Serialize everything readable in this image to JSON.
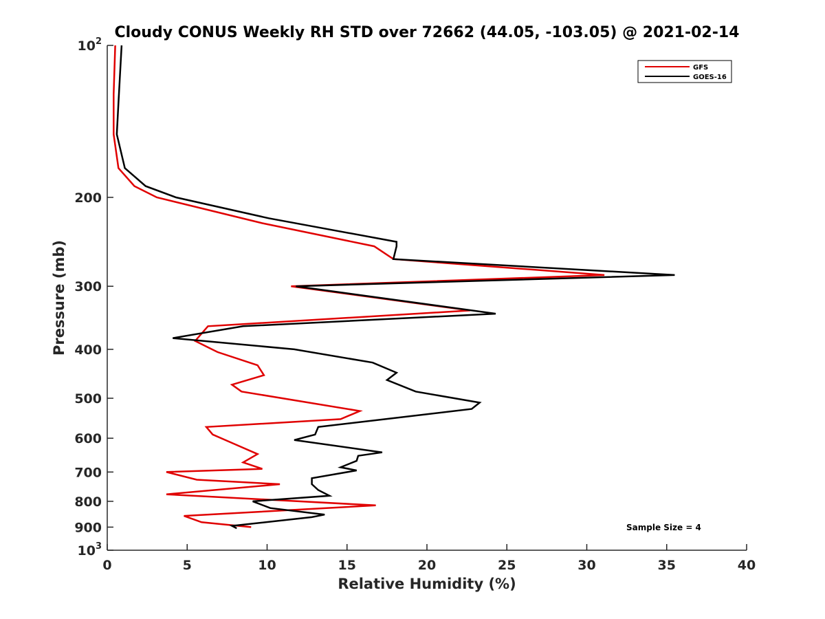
{
  "chart_data": {
    "type": "line",
    "title": "Cloudy CONUS Weekly RH STD over 72662 (44.05, -103.05) @ 2021-02-14",
    "xlabel": "Relative Humidity (%)",
    "ylabel": "Pressure (mb)",
    "xlim": [
      0,
      40
    ],
    "ylim": [
      100,
      1000
    ],
    "y_scale": "log",
    "y_reversed": true,
    "grid": false,
    "legend_position": "top-right",
    "x_ticks": [
      {
        "value": 0,
        "label": "0"
      },
      {
        "value": 5,
        "label": "5"
      },
      {
        "value": 10,
        "label": "10"
      },
      {
        "value": 15,
        "label": "15"
      },
      {
        "value": 20,
        "label": "20"
      },
      {
        "value": 25,
        "label": "25"
      },
      {
        "value": 30,
        "label": "30"
      },
      {
        "value": 35,
        "label": "35"
      },
      {
        "value": 40,
        "label": "40"
      }
    ],
    "y_ticks": [
      {
        "value": 100,
        "base": "10",
        "exp": "2"
      },
      {
        "value": 200,
        "base": "200",
        "exp": ""
      },
      {
        "value": 300,
        "base": "300",
        "exp": ""
      },
      {
        "value": 400,
        "base": "400",
        "exp": ""
      },
      {
        "value": 500,
        "base": "500",
        "exp": ""
      },
      {
        "value": 600,
        "base": "600",
        "exp": ""
      },
      {
        "value": 700,
        "base": "700",
        "exp": ""
      },
      {
        "value": 800,
        "base": "800",
        "exp": ""
      },
      {
        "value": 900,
        "base": "900",
        "exp": ""
      },
      {
        "value": 1000,
        "base": "10",
        "exp": "3"
      }
    ],
    "annotation": "Sample Size = 4",
    "series": [
      {
        "name": "GFS",
        "color": "#e00000",
        "points": [
          [
            0.5,
            100
          ],
          [
            0.4,
            125
          ],
          [
            0.4,
            150
          ],
          [
            0.7,
            175
          ],
          [
            1.7,
            190
          ],
          [
            3.1,
            200
          ],
          [
            9.7,
            225
          ],
          [
            16.7,
            250
          ],
          [
            17.9,
            265
          ],
          [
            31.1,
            285
          ],
          [
            11.5,
            300
          ],
          [
            22.7,
            335
          ],
          [
            6.3,
            360
          ],
          [
            5.5,
            385
          ],
          [
            6.9,
            405
          ],
          [
            9.4,
            430
          ],
          [
            9.8,
            450
          ],
          [
            7.8,
            470
          ],
          [
            8.4,
            485
          ],
          [
            15.8,
            530
          ],
          [
            14.6,
            550
          ],
          [
            6.2,
            570
          ],
          [
            6.6,
            590
          ],
          [
            7.9,
            615
          ],
          [
            9.4,
            645
          ],
          [
            8.5,
            670
          ],
          [
            9.7,
            690
          ],
          [
            3.7,
            700
          ],
          [
            5.6,
            725
          ],
          [
            10.8,
            740
          ],
          [
            3.7,
            775
          ],
          [
            16.8,
            815
          ],
          [
            4.8,
            855
          ],
          [
            5.9,
            880
          ],
          [
            9.0,
            900
          ]
        ]
      },
      {
        "name": "GOES-16",
        "color": "#000000",
        "points": [
          [
            0.9,
            100
          ],
          [
            0.7,
            130
          ],
          [
            0.6,
            150
          ],
          [
            1.1,
            175
          ],
          [
            2.4,
            190
          ],
          [
            4.3,
            200
          ],
          [
            10.1,
            220
          ],
          [
            18.1,
            245
          ],
          [
            18.1,
            250
          ],
          [
            17.9,
            265
          ],
          [
            35.5,
            285
          ],
          [
            11.8,
            300
          ],
          [
            24.3,
            340
          ],
          [
            8.5,
            360
          ],
          [
            4.1,
            380
          ],
          [
            11.7,
            400
          ],
          [
            16.6,
            425
          ],
          [
            18.1,
            445
          ],
          [
            17.5,
            460
          ],
          [
            19.3,
            485
          ],
          [
            23.3,
            510
          ],
          [
            22.8,
            525
          ],
          [
            17.4,
            550
          ],
          [
            13.2,
            570
          ],
          [
            13.0,
            590
          ],
          [
            11.7,
            605
          ],
          [
            17.2,
            640
          ],
          [
            15.7,
            650
          ],
          [
            15.6,
            665
          ],
          [
            14.6,
            685
          ],
          [
            15.6,
            695
          ],
          [
            12.8,
            720
          ],
          [
            12.8,
            740
          ],
          [
            13.2,
            760
          ],
          [
            13.9,
            780
          ],
          [
            9.1,
            800
          ],
          [
            10.2,
            825
          ],
          [
            13.6,
            850
          ],
          [
            12.8,
            860
          ],
          [
            7.8,
            895
          ],
          [
            8.1,
            905
          ]
        ]
      }
    ]
  }
}
